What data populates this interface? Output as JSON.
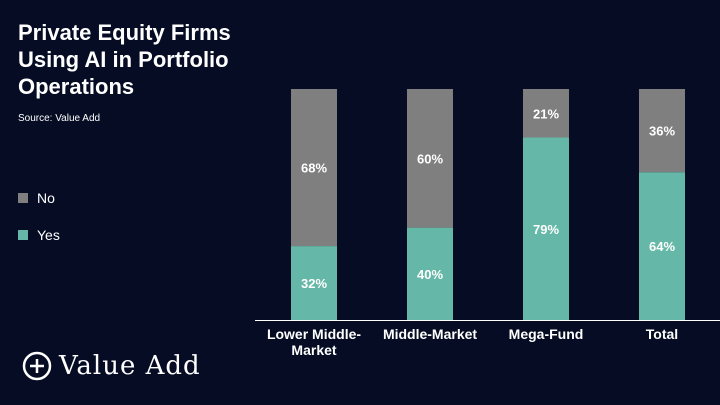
{
  "header": {
    "title": "Private Equity Firms Using AI in Portfolio Operations",
    "source": "Source: Value Add"
  },
  "logo": {
    "text": "Value Add",
    "icon": "plus-circle-icon"
  },
  "colors": {
    "background": "#050c23",
    "yes": "#65b8a7",
    "no": "#7f7f7f"
  },
  "chart_data": {
    "type": "bar",
    "stacked": true,
    "categories": [
      [
        "Lower Middle-",
        "Market"
      ],
      [
        "Middle-Market"
      ],
      [
        "Mega-Fund"
      ],
      [
        "Total"
      ]
    ],
    "series": [
      {
        "name": "Yes",
        "values": [
          32,
          40,
          79,
          64
        ],
        "labels": [
          "32%",
          "40%",
          "79%",
          "64%"
        ],
        "color": "#65b8a7"
      },
      {
        "name": "No",
        "values": [
          68,
          60,
          21,
          36
        ],
        "labels": [
          "68%",
          "60%",
          "21%",
          "36%"
        ],
        "color": "#7f7f7f"
      }
    ],
    "legend": {
      "position": "left",
      "items": [
        {
          "label": "No",
          "color": "#7f7f7f"
        },
        {
          "label": "Yes",
          "color": "#65b8a7"
        }
      ]
    },
    "ylim": [
      0,
      100
    ],
    "grid": false
  }
}
